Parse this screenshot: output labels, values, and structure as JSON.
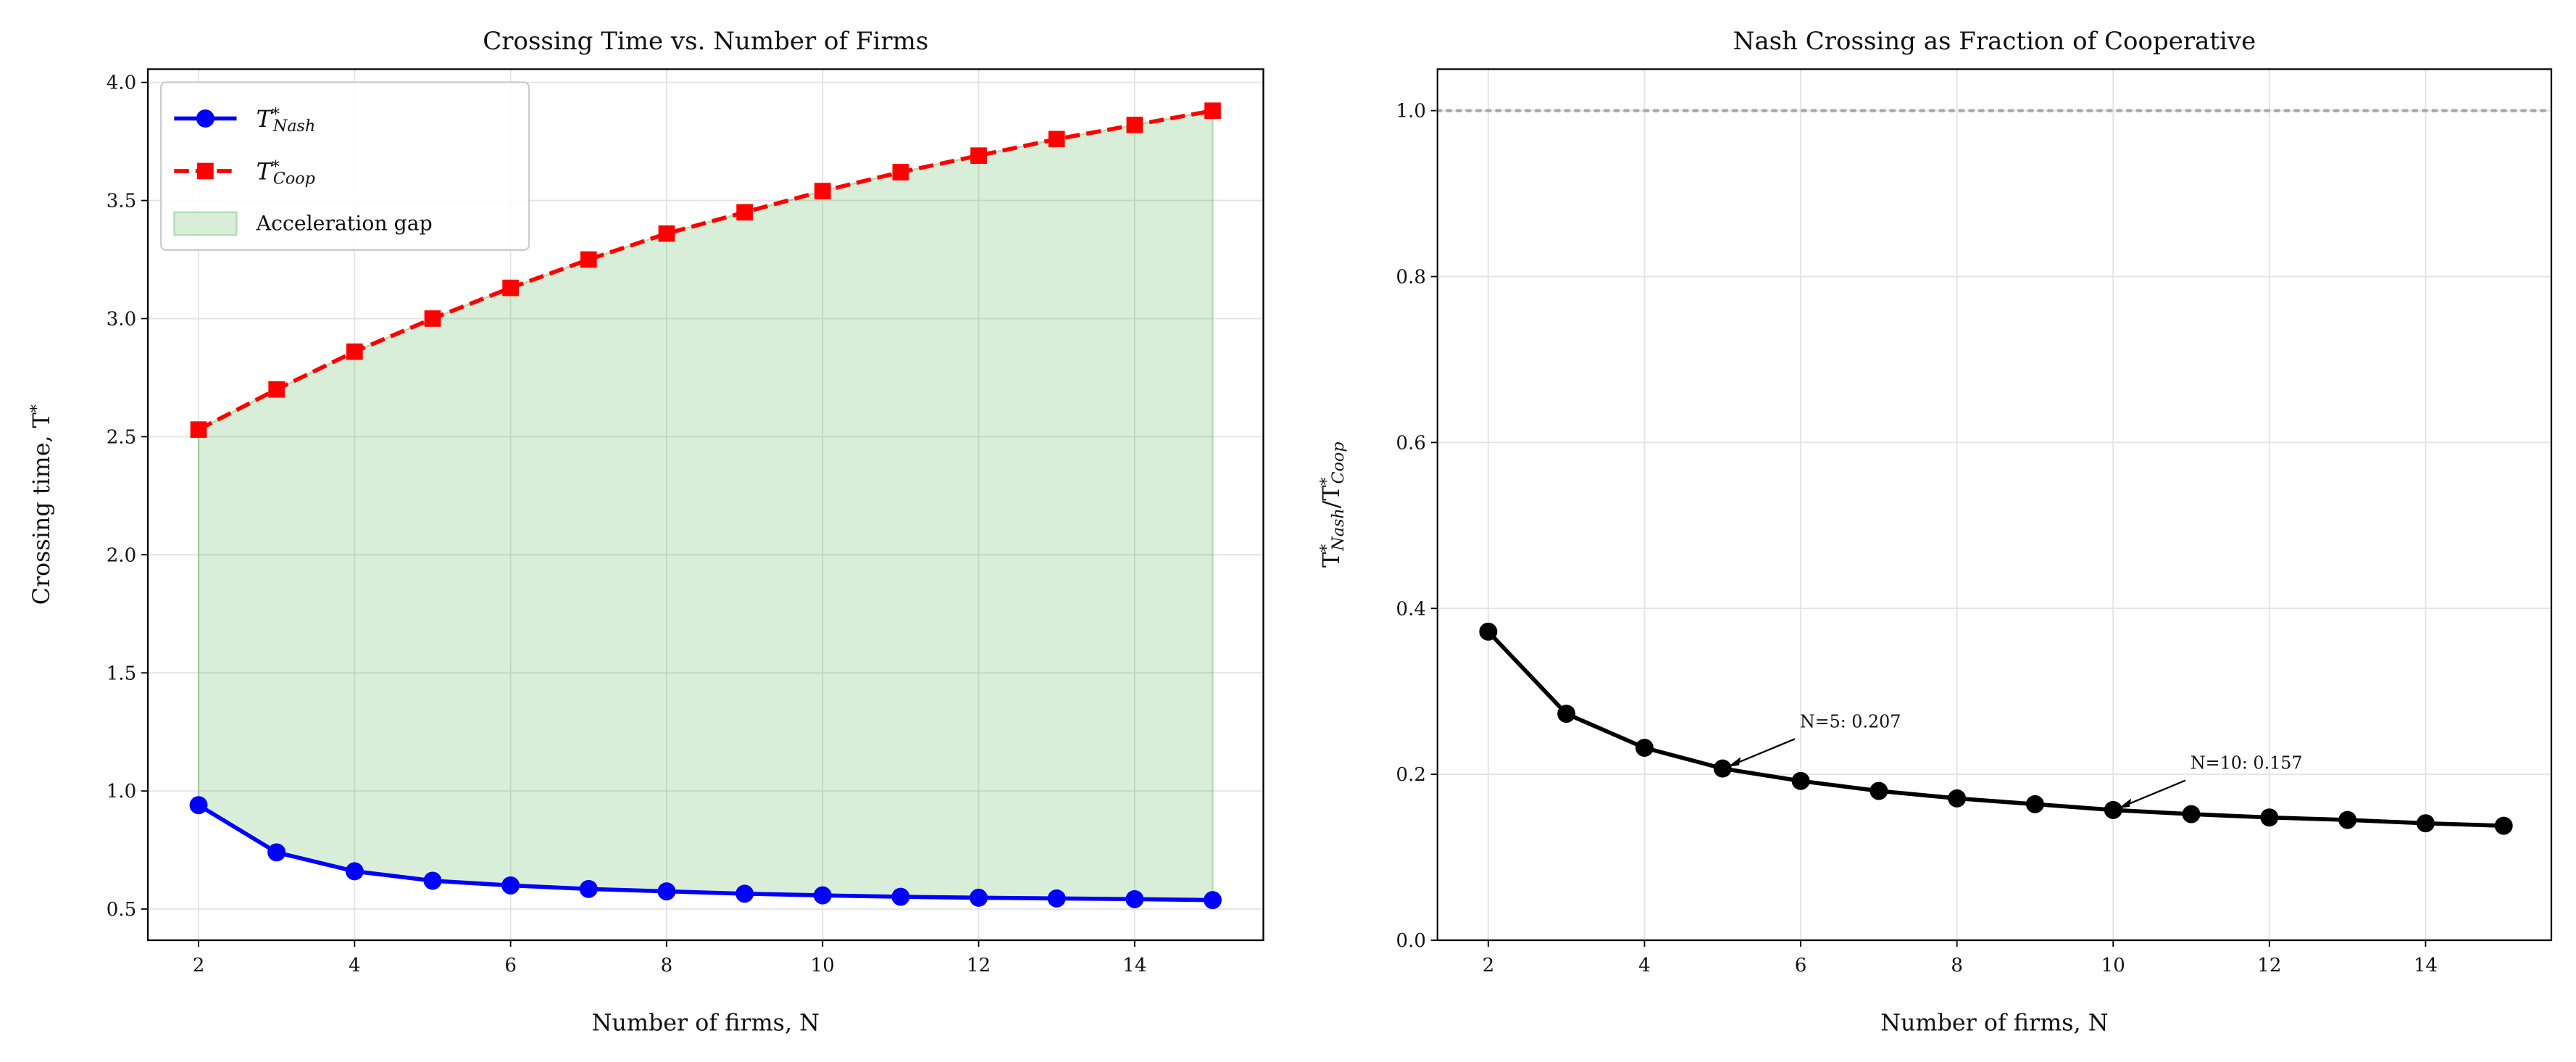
{
  "chart_data": [
    {
      "type": "line",
      "title": "Crossing Time vs. Number of Firms",
      "xlabel": "Number of firms, N",
      "ylabel": "Crossing time, T*",
      "x": [
        2,
        3,
        4,
        5,
        6,
        7,
        8,
        9,
        10,
        11,
        12,
        13,
        14,
        15
      ],
      "series": [
        {
          "name": "T*Nash",
          "color": "#0000ff",
          "marker": "circle",
          "linestyle": "solid",
          "values": [
            0.94,
            0.74,
            0.66,
            0.62,
            0.6,
            0.585,
            0.575,
            0.565,
            0.558,
            0.552,
            0.548,
            0.545,
            0.542,
            0.538
          ]
        },
        {
          "name": "T*Coop",
          "color": "#ff0000",
          "marker": "square",
          "linestyle": "dashed",
          "values": [
            2.53,
            2.7,
            2.86,
            3.0,
            3.13,
            3.25,
            3.36,
            3.45,
            3.54,
            3.62,
            3.69,
            3.76,
            3.82,
            3.88
          ]
        }
      ],
      "fill_between": {
        "name": "Acceleration gap",
        "color": "#2ca02c",
        "alpha": 0.18
      },
      "xlim": [
        1.35,
        15.65
      ],
      "ylim": [
        0.368,
        4.056
      ],
      "xticks": [
        2,
        4,
        6,
        8,
        10,
        12,
        14
      ],
      "yticks": [
        {
          "value": 0.5,
          "label": "0.5"
        },
        {
          "value": 1,
          "label": "1.0"
        },
        {
          "value": 1.5,
          "label": "1.5"
        },
        {
          "value": 2,
          "label": "2.0"
        },
        {
          "value": 2.5,
          "label": "2.5"
        },
        {
          "value": 3,
          "label": "3.0"
        },
        {
          "value": 3.5,
          "label": "3.5"
        },
        {
          "value": 4,
          "label": "4.0"
        }
      ],
      "grid": true,
      "legend": "upper left"
    },
    {
      "type": "line",
      "title": "Nash Crossing as Fraction of Cooperative",
      "xlabel": "Number of firms, N",
      "ylabel": "T*Nash/T*Coop",
      "x": [
        2,
        3,
        4,
        5,
        6,
        7,
        8,
        9,
        10,
        11,
        12,
        13,
        14,
        15
      ],
      "series": [
        {
          "color": "#000000",
          "marker": "circle",
          "linestyle": "solid",
          "values": [
            0.372,
            0.273,
            0.232,
            0.207,
            0.192,
            0.18,
            0.171,
            0.164,
            0.157,
            0.152,
            0.148,
            0.145,
            0.141,
            0.138
          ]
        }
      ],
      "hline": {
        "value": 1,
        "color": "#aaaaaa"
      },
      "annotations": [
        {
          "text": "N=5: 0.207",
          "x": 5,
          "y": 0.207
        },
        {
          "text": "N=10: 0.157",
          "x": 10,
          "y": 0.157
        }
      ],
      "xlim": [
        1.35,
        15.61
      ],
      "ylim": [
        0,
        1.05
      ],
      "xticks": [
        2,
        4,
        6,
        8,
        10,
        12,
        14
      ],
      "yticks": [
        {
          "value": 0,
          "label": "0.0"
        },
        {
          "value": 0.2,
          "label": "0.2"
        },
        {
          "value": 0.4,
          "label": "0.4"
        },
        {
          "value": 0.6,
          "label": "0.6"
        },
        {
          "value": 0.8,
          "label": "0.8"
        },
        {
          "value": 1,
          "label": "1.0"
        }
      ],
      "grid": true
    }
  ]
}
